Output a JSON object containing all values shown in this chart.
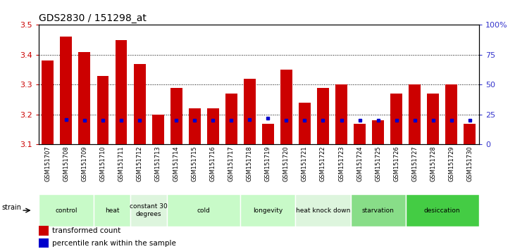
{
  "title": "GDS2830 / 151298_at",
  "samples": [
    "GSM151707",
    "GSM151708",
    "GSM151709",
    "GSM151710",
    "GSM151711",
    "GSM151712",
    "GSM151713",
    "GSM151714",
    "GSM151715",
    "GSM151716",
    "GSM151717",
    "GSM151718",
    "GSM151719",
    "GSM151720",
    "GSM151721",
    "GSM151722",
    "GSM151723",
    "GSM151724",
    "GSM151725",
    "GSM151726",
    "GSM151727",
    "GSM151728",
    "GSM151729",
    "GSM151730"
  ],
  "bar_values": [
    3.38,
    3.46,
    3.41,
    3.33,
    3.45,
    3.37,
    3.2,
    3.29,
    3.22,
    3.22,
    3.27,
    3.32,
    3.17,
    3.35,
    3.24,
    3.29,
    3.3,
    3.17,
    3.18,
    3.27,
    3.3,
    3.27,
    3.3,
    3.17
  ],
  "percentile_values": [
    null,
    21,
    20,
    20,
    20,
    20,
    null,
    20,
    20,
    20,
    20,
    21,
    22,
    20,
    20,
    20,
    20,
    20,
    20,
    20,
    20,
    20,
    20,
    20
  ],
  "bar_color": "#cc0000",
  "percentile_color": "#0000cc",
  "ylim_left": [
    3.1,
    3.5
  ],
  "ylim_right": [
    0,
    100
  ],
  "yticks_left": [
    3.1,
    3.2,
    3.3,
    3.4,
    3.5
  ],
  "yticks_right": [
    0,
    25,
    50,
    75,
    100
  ],
  "ytick_labels_right": [
    "0",
    "25",
    "50",
    "75",
    "100%"
  ],
  "grid_values": [
    3.2,
    3.3,
    3.4
  ],
  "groups": [
    {
      "label": "control",
      "start": 0,
      "end": 2,
      "color": "#c8fac8"
    },
    {
      "label": "heat",
      "start": 3,
      "end": 4,
      "color": "#c8fac8"
    },
    {
      "label": "constant 30\ndegrees",
      "start": 5,
      "end": 6,
      "color": "#ddf0dd"
    },
    {
      "label": "cold",
      "start": 7,
      "end": 10,
      "color": "#c8fac8"
    },
    {
      "label": "longevity",
      "start": 11,
      "end": 13,
      "color": "#c8fac8"
    },
    {
      "label": "heat knock down",
      "start": 14,
      "end": 16,
      "color": "#ddf0dd"
    },
    {
      "label": "starvation",
      "start": 17,
      "end": 19,
      "color": "#88dd88"
    },
    {
      "label": "desiccation",
      "start": 20,
      "end": 23,
      "color": "#44cc44"
    }
  ],
  "legend_bar_label": "transformed count",
  "legend_pct_label": "percentile rank within the sample",
  "strain_label": "strain",
  "title_fontsize": 10,
  "axis_color_left": "#cc0000",
  "axis_color_right": "#3333cc",
  "bg_color": "#ffffff"
}
